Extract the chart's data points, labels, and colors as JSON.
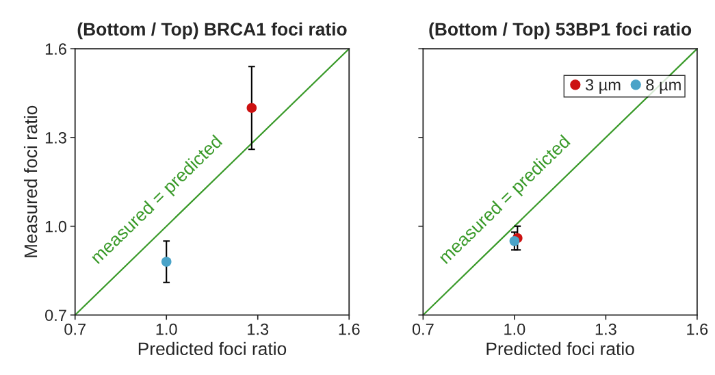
{
  "chart_data": [
    {
      "type": "scatter",
      "title": "(Bottom / Top) BRCA1 foci ratio",
      "xlabel": "Predicted foci ratio",
      "ylabel": "Measured foci ratio",
      "xlim": [
        0.7,
        1.6
      ],
      "ylim": [
        0.7,
        1.6
      ],
      "xticks": [
        0.7,
        {
          "value": 1.0,
          "label": "1.0"
        },
        1.3,
        1.6
      ],
      "yticks": [
        0.7,
        {
          "value": 1.0,
          "label": "1.0"
        },
        1.3,
        1.6
      ],
      "grid": false,
      "legend": false,
      "series": [
        {
          "color": "#cc1111",
          "marker": "circle",
          "x": [
            1.28
          ],
          "values": [
            1.4
          ],
          "errors": [
            0.14
          ]
        },
        {
          "color": "#4aa3c8",
          "marker": "circle",
          "x": [
            1.0
          ],
          "values": [
            0.88
          ],
          "errors": [
            0.07
          ]
        },
        {
          "type": "line",
          "marker": "none",
          "color": "#3a9a2a",
          "x": [
            0.7,
            1.6
          ],
          "values": [
            0.7,
            1.6
          ]
        }
      ],
      "annotations": [
        "measured = predicted"
      ]
    },
    {
      "type": "scatter",
      "title": "(Bottom / Top) 53BP1 foci ratio",
      "xlabel": "Predicted foci ratio",
      "xlim": [
        0.7,
        1.6
      ],
      "ylim": [
        0.7,
        1.6
      ],
      "xticks": [
        0.7,
        {
          "value": 1.0,
          "label": "1.0"
        },
        1.3,
        1.6
      ],
      "yticks": [
        0.7,
        1.0,
        1.3,
        1.6
      ],
      "tick_labels": "x",
      "grid": false,
      "legend": "top right",
      "series": [
        {
          "name": "3 µm",
          "marker": "circle",
          "color": "#cc1111",
          "x": [
            1.01
          ],
          "values": [
            0.96
          ],
          "errors": [
            0.04
          ]
        },
        {
          "name": "8 µm",
          "marker": "circle",
          "color": "#4aa3c8",
          "x": [
            1.0
          ],
          "values": [
            0.95
          ],
          "errors": [
            0.03
          ]
        },
        {
          "type": "line",
          "marker": "none",
          "color": "#3a9a2a",
          "x": [
            0.7,
            1.6
          ],
          "values": [
            0.7,
            1.6
          ]
        }
      ],
      "annotations": [
        "measured = predicted"
      ]
    }
  ]
}
